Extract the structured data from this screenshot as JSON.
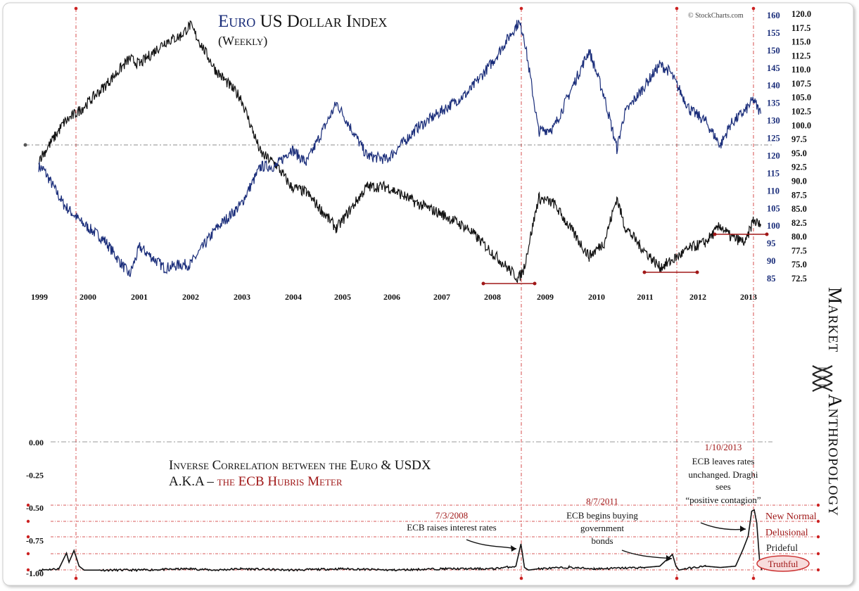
{
  "colors": {
    "euro": "#1a2d7a",
    "usd": "#111111",
    "accent": "#a01818",
    "guide": "#cc2222",
    "zeroline": "#777777"
  },
  "chart_data": [
    {
      "type": "line",
      "title_part1": "Euro",
      "title_part2": "US Dollar Index",
      "subtitle": "(Weekly)",
      "credit": "© StockCharts.com",
      "x_tick_labels": [
        "1999",
        "2000",
        "2001",
        "2002",
        "2003",
        "2004",
        "2005",
        "2006",
        "2007",
        "2008",
        "2009",
        "2010",
        "2011",
        "2012",
        "2013"
      ],
      "y_left_ticks": [
        160,
        155,
        150,
        145,
        140,
        135,
        130,
        125,
        120,
        115,
        110,
        105,
        100,
        95,
        90,
        85
      ],
      "y_right_ticks": [
        "120.0",
        "117.5",
        "115.0",
        "112.5",
        "110.0",
        "107.5",
        "105.0",
        "102.5",
        "100.0",
        "97.5",
        "95.0",
        "92.5",
        "90.0",
        "87.5",
        "85.0",
        "82.5",
        "80.0",
        "77.5",
        "75.0",
        "72.5"
      ],
      "series": [
        {
          "name": "Euro (EUR/USD x100, left axis)",
          "x": [
            1999.0,
            1999.1,
            1999.5,
            1999.85,
            2000.3,
            2000.8,
            2001.0,
            2001.5,
            2001.8,
            2002.0,
            2002.5,
            2003.0,
            2003.4,
            2003.7,
            2004.0,
            2004.3,
            2004.9,
            2005.5,
            2005.9,
            2006.5,
            2007.0,
            2007.5,
            2008.0,
            2008.5,
            2008.6,
            2008.9,
            2009.2,
            2009.9,
            2010.2,
            2010.45,
            2010.6,
            2010.9,
            2011.3,
            2011.5,
            2011.9,
            2012.2,
            2012.5,
            2012.7,
            2013.0,
            2013.15,
            2013.3
          ],
          "values": [
            117,
            116,
            106,
            101,
            96,
            86,
            94,
            88,
            89,
            89,
            99,
            106,
            117,
            117,
            122,
            118,
            135,
            120,
            119,
            128,
            133,
            138,
            147,
            158,
            155,
            127,
            128,
            150,
            137,
            122,
            132,
            138,
            146,
            144,
            133,
            130,
            123,
            129,
            133,
            136,
            132
          ]
        },
        {
          "name": "US Dollar Index (right axis)",
          "x": [
            1999.0,
            1999.1,
            1999.5,
            1999.85,
            2000.3,
            2000.8,
            2001.0,
            2001.5,
            2001.8,
            2002.0,
            2002.5,
            2003.0,
            2003.4,
            2003.7,
            2004.0,
            2004.3,
            2004.9,
            2005.5,
            2005.9,
            2006.5,
            2007.0,
            2007.5,
            2008.0,
            2008.5,
            2008.6,
            2008.9,
            2009.2,
            2009.9,
            2010.2,
            2010.45,
            2010.6,
            2010.9,
            2011.3,
            2011.5,
            2011.9,
            2012.2,
            2012.5,
            2012.7,
            2013.0,
            2013.15,
            2013.3
          ],
          "values": [
            94,
            95,
            100.5,
            103,
            107,
            112,
            111,
            115,
            116,
            118,
            110,
            105,
            95,
            93,
            89,
            88,
            81.5,
            89,
            89,
            86,
            84,
            81.5,
            77,
            72.5,
            74,
            87,
            86,
            76.5,
            79,
            87,
            82,
            78.5,
            74.5,
            75.5,
            78,
            79,
            82,
            80,
            79,
            83,
            82
          ]
        }
      ]
    },
    {
      "type": "line",
      "title_line1": "Inverse Correlation between the Euro & USDX",
      "title_line2_prefix": "A.K.A –",
      "title_line2_highlight": "the ECB Hubris Meter",
      "ylim": [
        -1.0,
        0.0
      ],
      "y_tick_labels": [
        "0.00",
        "-0.25",
        "-0.50",
        "-0.75",
        "-1.00"
      ],
      "series": [
        {
          "name": "Correlation",
          "x": [
            1999.0,
            1999.4,
            1999.55,
            1999.6,
            1999.7,
            1999.8,
            1999.9,
            2000.2,
            2001.0,
            2002.0,
            2002.5,
            2003.0,
            2004.0,
            2005.0,
            2006.0,
            2007.0,
            2008.0,
            2008.45,
            2008.55,
            2008.62,
            2008.7,
            2008.9,
            2009.5,
            2010.0,
            2011.0,
            2011.3,
            2011.55,
            2011.62,
            2011.68,
            2011.8,
            2012.2,
            2012.5,
            2012.8,
            2012.95,
            2013.05,
            2013.12,
            2013.17,
            2013.22,
            2013.28,
            2013.32
          ],
          "values": [
            -0.98,
            -0.97,
            -0.85,
            -0.92,
            -0.83,
            -0.95,
            -0.98,
            -0.98,
            -0.98,
            -0.97,
            -0.98,
            -0.97,
            -0.98,
            -0.97,
            -0.98,
            -0.97,
            -0.97,
            -0.95,
            -0.78,
            -0.96,
            -0.98,
            -0.97,
            -0.96,
            -0.97,
            -0.96,
            -0.95,
            -0.86,
            -0.95,
            -0.98,
            -0.97,
            -0.95,
            -0.96,
            -0.95,
            -0.82,
            -0.72,
            -0.53,
            -0.52,
            -0.62,
            -0.93,
            -0.98
          ]
        }
      ],
      "levels": [
        "New Normal",
        "Delusional",
        "Prideful",
        "Truthful"
      ],
      "annotations": [
        {
          "date": "7/3/2008",
          "text": [
            "ECB raises interest rates"
          ]
        },
        {
          "date": "8/7/2011",
          "text": [
            "ECB begins buying",
            "government",
            "bonds"
          ]
        },
        {
          "date": "1/10/2013",
          "text": [
            "ECB leaves rates",
            "unchanged. Draghi",
            "sees",
            "“positive contagion”"
          ]
        }
      ]
    }
  ],
  "brand": {
    "word1": "Market",
    "word2": "Anthropology"
  }
}
